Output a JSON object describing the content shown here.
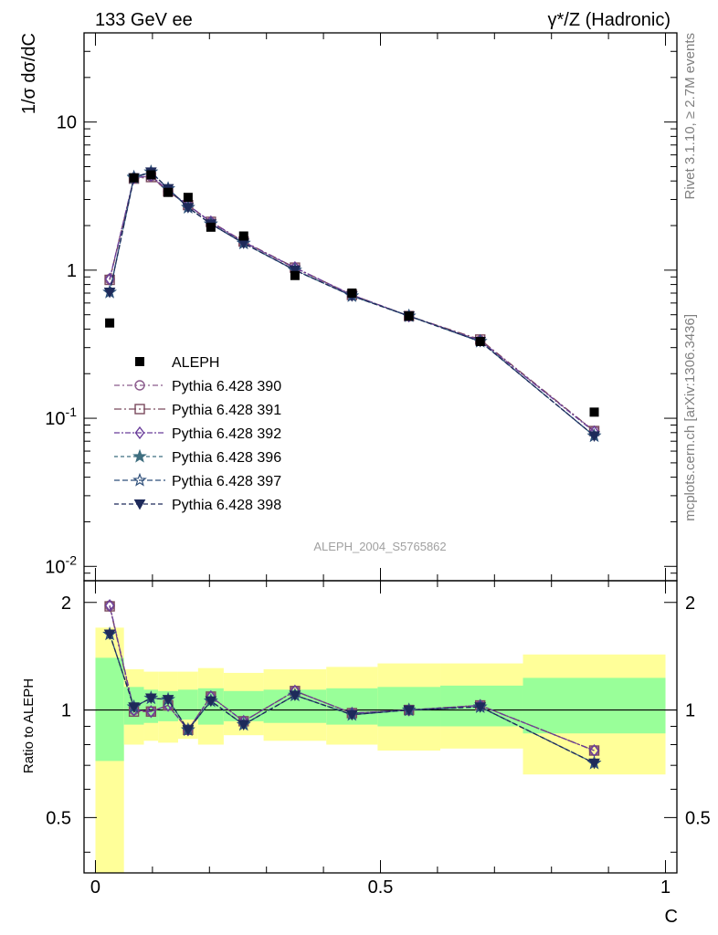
{
  "header": {
    "left_title": "133 GeV ee",
    "right_title": "γ*/Z (Hadronic)"
  },
  "side_labels": {
    "rivet": "Rivet 3.1.10, ≥ 2.7M events",
    "site": "mcplots.cern.ch [arXiv:1306.3436]"
  },
  "watermark": "ALEPH_2004_S5765862",
  "chart_data": [
    {
      "type": "line",
      "panel": "main",
      "ylabel": "1/σ  dσ/dC",
      "yscale": "log",
      "ylim": [
        0.008,
        40
      ],
      "xlim": [
        -0.02,
        1.02
      ],
      "yticks": [
        {
          "label": "10",
          "sup": "-2",
          "value": 0.01
        },
        {
          "label": "10",
          "sup": "-1",
          "value": 0.1
        },
        {
          "label": "1",
          "sup": "",
          "value": 1
        },
        {
          "label": "10",
          "sup": "",
          "value": 10
        }
      ],
      "legend": {
        "position": "center-left",
        "entries": [
          "ALEPH",
          "Pythia 6.428 390",
          "Pythia 6.428 391",
          "Pythia 6.428 392",
          "Pythia 6.428 396",
          "Pythia 6.428 397",
          "Pythia 6.428 398"
        ]
      },
      "x": [
        0.025,
        0.0675,
        0.0975,
        0.1275,
        0.1625,
        0.2025,
        0.26,
        0.35,
        0.45,
        0.55,
        0.675,
        0.875
      ],
      "data_series": {
        "name": "ALEPH",
        "color": "#000000",
        "values": [
          0.44,
          4.2,
          4.4,
          3.35,
          3.1,
          1.95,
          1.7,
          0.92,
          0.7,
          0.49,
          0.33,
          0.11
        ]
      },
      "series": [
        {
          "name": "Pythia 6.428 390",
          "color": "#8b5a8c",
          "marker": "circle",
          "dash": "6,3,2,3",
          "values": [
            0.87,
            4.2,
            4.3,
            3.4,
            2.75,
            2.1,
            1.55,
            1.03,
            0.68,
            0.49,
            0.335,
            0.082
          ]
        },
        {
          "name": "Pythia 6.428 391",
          "color": "#7a4a5e",
          "marker": "square",
          "dash": "8,3,2,3",
          "values": [
            0.86,
            4.15,
            4.25,
            3.4,
            2.75,
            2.12,
            1.56,
            1.04,
            0.68,
            0.49,
            0.34,
            0.082
          ]
        },
        {
          "name": "Pythia 6.428 392",
          "color": "#6a3d9a",
          "marker": "diamond",
          "dash": "6,2,2,2",
          "values": [
            0.87,
            4.2,
            4.35,
            3.45,
            2.75,
            2.12,
            1.55,
            1.04,
            0.68,
            0.49,
            0.335,
            0.081
          ]
        },
        {
          "name": "Pythia 6.428 396",
          "color": "#3f6f80",
          "marker": "star",
          "dash": "4,3",
          "values": [
            0.71,
            4.2,
            4.6,
            3.55,
            2.65,
            2.05,
            1.52,
            1.0,
            0.67,
            0.49,
            0.33,
            0.076
          ]
        },
        {
          "name": "Pythia 6.428 397",
          "color": "#2f4f7a",
          "marker": "star-open",
          "dash": "6,3",
          "values": [
            0.71,
            4.25,
            4.6,
            3.55,
            2.65,
            2.05,
            1.52,
            1.0,
            0.67,
            0.49,
            0.33,
            0.076
          ]
        },
        {
          "name": "Pythia 6.428 398",
          "color": "#1e2a5a",
          "marker": "triangle-down",
          "dash": "5,3",
          "values": [
            0.71,
            4.2,
            4.6,
            3.55,
            2.65,
            2.05,
            1.52,
            1.0,
            0.67,
            0.49,
            0.33,
            0.076
          ]
        }
      ]
    },
    {
      "type": "line",
      "panel": "ratio",
      "ylabel": "Ratio to ALEPH",
      "xlabel": "C",
      "ylim": [
        0.35,
        2.3
      ],
      "xlim": [
        -0.02,
        1.02
      ],
      "yticks": [
        "0.5",
        "1",
        "2"
      ],
      "xticks": [
        "0",
        "0.5",
        "1"
      ],
      "bands": {
        "edges": [
          0,
          0.05,
          0.085,
          0.11,
          0.145,
          0.18,
          0.225,
          0.295,
          0.405,
          0.495,
          0.605,
          0.75,
          1.0
        ],
        "inner_lo": [
          0.72,
          0.91,
          0.92,
          0.93,
          0.94,
          0.91,
          0.93,
          0.92,
          0.91,
          0.9,
          0.9,
          0.86
        ],
        "inner_hi": [
          1.4,
          1.16,
          1.14,
          1.13,
          1.14,
          1.15,
          1.13,
          1.14,
          1.15,
          1.16,
          1.17,
          1.23
        ],
        "outer_lo": [
          0.35,
          0.8,
          0.82,
          0.81,
          0.83,
          0.8,
          0.85,
          0.82,
          0.8,
          0.77,
          0.78,
          0.66
        ],
        "outer_hi": [
          1.7,
          1.3,
          1.28,
          1.28,
          1.28,
          1.31,
          1.27,
          1.3,
          1.32,
          1.35,
          1.35,
          1.43
        ],
        "inner_color": "#99ff99",
        "outer_color": "#ffff99"
      },
      "series": [
        {
          "name": "Pythia 6.428 390",
          "values": [
            1.96,
            1.0,
            0.99,
            1.03,
            0.88,
            1.09,
            0.93,
            1.13,
            0.98,
            1.0,
            1.03,
            0.77
          ]
        },
        {
          "name": "Pythia 6.428 391",
          "values": [
            1.95,
            0.99,
            0.99,
            1.03,
            0.88,
            1.09,
            0.93,
            1.13,
            0.98,
            1.0,
            1.03,
            0.77
          ]
        },
        {
          "name": "Pythia 6.428 392",
          "values": [
            1.96,
            1.0,
            0.99,
            1.03,
            0.88,
            1.09,
            0.93,
            1.13,
            0.98,
            1.0,
            1.03,
            0.77
          ]
        },
        {
          "name": "Pythia 6.428 396",
          "values": [
            1.63,
            1.02,
            1.08,
            1.07,
            0.88,
            1.06,
            0.91,
            1.1,
            0.97,
            1.0,
            1.02,
            0.71
          ]
        },
        {
          "name": "Pythia 6.428 397",
          "values": [
            1.63,
            1.02,
            1.08,
            1.07,
            0.88,
            1.06,
            0.91,
            1.1,
            0.97,
            1.0,
            1.02,
            0.71
          ]
        },
        {
          "name": "Pythia 6.428 398",
          "values": [
            1.63,
            1.02,
            1.08,
            1.07,
            0.88,
            1.06,
            0.91,
            1.1,
            0.97,
            1.0,
            1.02,
            0.71
          ]
        }
      ]
    }
  ]
}
